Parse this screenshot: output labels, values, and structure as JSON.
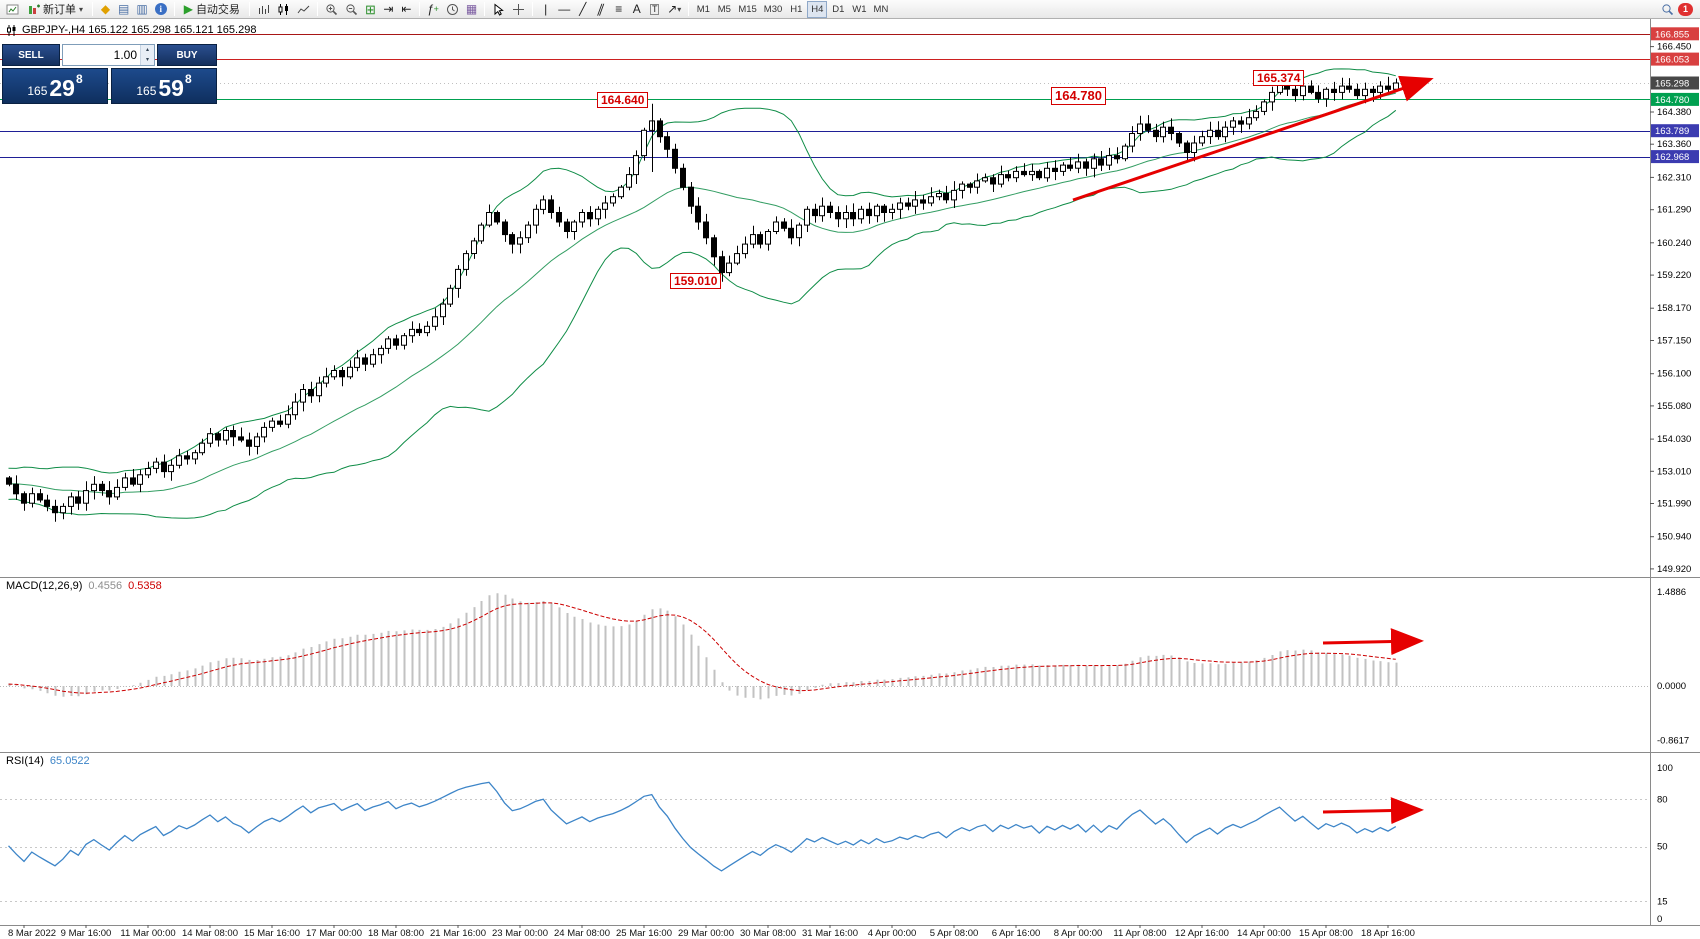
{
  "toolbar": {
    "new_order_label": "新订单",
    "auto_trading_label": "自动交易",
    "timeframes": [
      "M1",
      "M5",
      "M15",
      "M30",
      "H1",
      "H4",
      "D1",
      "W1",
      "MN"
    ],
    "active_timeframe": "H4",
    "notification_count": "1",
    "text_tool_label": "A",
    "label_tool_label": "T"
  },
  "trade_panel": {
    "sell_label": "SELL",
    "buy_label": "BUY",
    "volume": "1.00",
    "sell_price_prefix": "165",
    "sell_price_big": "29",
    "sell_price_sup": "8",
    "buy_price_prefix": "165",
    "buy_price_big": "59",
    "buy_price_sup": "8"
  },
  "chart": {
    "quote_line": "GBPJPY-,H4  165.122 165.298 165.121 165.298",
    "annotations": {
      "spike_high": "164.640",
      "swing_low": "159.010",
      "support": "164.780",
      "recent_high": "165.374"
    }
  },
  "macd_panel": {
    "title": "MACD(12,26,9)",
    "value_main": "0.4556",
    "value_signal": "0.5358",
    "axis_max": "1.4886",
    "axis_zero": "0.0000",
    "axis_min": "-0.8617"
  },
  "rsi_panel": {
    "title": "RSI(14)",
    "value": "65.0522",
    "axis_labels": [
      "100",
      "80",
      "50",
      "15",
      "0"
    ]
  },
  "chart_data": {
    "type": "candlestick",
    "symbol": "GBPJPY-",
    "timeframe": "H4",
    "last_quote": {
      "open": 165.122,
      "high": 165.298,
      "low": 165.121,
      "close": 165.298
    },
    "current_price": 165.298,
    "first_open": 152.8,
    "closes": [
      152.6,
      152.3,
      152.0,
      152.3,
      152.1,
      151.9,
      151.7,
      151.9,
      152.2,
      152.0,
      152.4,
      152.6,
      152.4,
      152.2,
      152.5,
      152.8,
      152.6,
      152.9,
      153.1,
      153.3,
      153.0,
      153.2,
      153.5,
      153.4,
      153.6,
      153.9,
      154.2,
      154.0,
      154.3,
      154.1,
      154.0,
      153.8,
      154.1,
      154.4,
      154.6,
      154.5,
      154.8,
      155.2,
      155.6,
      155.4,
      155.8,
      156.0,
      156.2,
      156.0,
      156.3,
      156.6,
      156.4,
      156.7,
      156.9,
      157.2,
      157.0,
      157.3,
      157.5,
      157.4,
      157.6,
      157.9,
      158.3,
      158.8,
      159.4,
      159.9,
      160.3,
      160.8,
      161.2,
      160.9,
      160.5,
      160.2,
      160.4,
      160.8,
      161.3,
      161.6,
      161.2,
      160.9,
      160.6,
      160.9,
      161.2,
      161.0,
      161.3,
      161.5,
      161.7,
      162.0,
      162.4,
      163.0,
      163.8,
      164.1,
      163.6,
      163.2,
      162.6,
      162.0,
      161.4,
      160.9,
      160.4,
      159.8,
      159.3,
      159.6,
      159.9,
      160.2,
      160.5,
      160.2,
      160.6,
      160.9,
      160.7,
      160.4,
      160.8,
      161.3,
      161.1,
      161.4,
      161.2,
      161.0,
      161.2,
      161.0,
      161.3,
      161.1,
      161.4,
      161.2,
      161.3,
      161.5,
      161.4,
      161.6,
      161.5,
      161.7,
      161.8,
      161.6,
      161.9,
      162.1,
      162.0,
      162.2,
      162.3,
      162.1,
      162.4,
      162.3,
      162.5,
      162.4,
      162.5,
      162.3,
      162.6,
      162.5,
      162.7,
      162.6,
      162.8,
      162.6,
      162.9,
      162.7,
      163.0,
      162.9,
      163.3,
      163.7,
      164.0,
      163.8,
      163.6,
      163.9,
      163.7,
      163.4,
      163.1,
      163.4,
      163.6,
      163.8,
      163.6,
      163.9,
      164.1,
      164.0,
      164.2,
      164.4,
      164.7,
      165.0,
      165.3,
      165.1,
      164.9,
      165.2,
      165.0,
      164.8,
      165.1,
      165.0,
      165.2,
      165.1,
      164.9,
      165.1,
      165.0,
      165.2,
      165.1,
      165.298
    ],
    "high_overrides": {
      "83": 164.64,
      "164": 165.374
    },
    "low_overrides": {
      "92": 159.01
    },
    "horizontal_levels": [
      {
        "price": 166.855,
        "color": "#a81616"
      },
      {
        "price": 166.053,
        "color": "#cc2020"
      },
      {
        "price": 164.78,
        "color": "#00a050"
      },
      {
        "price": 163.789,
        "color": "#1f1f96"
      },
      {
        "price": 162.968,
        "color": "#1f1f96"
      }
    ],
    "price_tags": [
      {
        "text": "166.855",
        "price": 166.855,
        "bg": "#d84040"
      },
      {
        "text": "166.053",
        "price": 166.053,
        "bg": "#d84040"
      },
      {
        "text": "165.298",
        "price": 165.298,
        "bg": "#484848"
      },
      {
        "text": "164.780",
        "price": 164.78,
        "bg": "#00a050"
      },
      {
        "text": "163.789",
        "price": 163.789,
        "bg": "#3b3bb0"
      },
      {
        "text": "162.968",
        "price": 162.968,
        "bg": "#3b3bb0"
      }
    ],
    "price_axis_ticks": [
      "166.450",
      "164.380",
      "163.360",
      "162.310",
      "161.290",
      "160.240",
      "159.220",
      "158.170",
      "157.150",
      "156.100",
      "155.080",
      "154.030",
      "153.010",
      "151.990",
      "150.940",
      "149.920"
    ],
    "time_labels": [
      "8 Mar 2022",
      "9 Mar 16:00",
      "11 Mar 00:00",
      "14 Mar 08:00",
      "15 Mar 16:00",
      "17 Mar 00:00",
      "18 Mar 08:00",
      "21 Mar 16:00",
      "23 Mar 00:00",
      "24 Mar 08:00",
      "25 Mar 16:00",
      "29 Mar 00:00",
      "30 Mar 08:00",
      "31 Mar 16:00",
      "4 Apr 00:00",
      "5 Apr 08:00",
      "6 Apr 16:00",
      "8 Apr 00:00",
      "11 Apr 08:00",
      "12 Apr 16:00",
      "14 Apr 00:00",
      "15 Apr 08:00",
      "18 Apr 16:00"
    ],
    "time_label_first_index": 2,
    "time_label_step": 8,
    "indicators": {
      "bollinger": {
        "period": 20,
        "deviation": 2,
        "color": "#0e8c46"
      },
      "macd": {
        "fast": 12,
        "slow": 26,
        "signal": 9,
        "histogram_color": "#c2c2c2",
        "signal_color": "#cc0000"
      },
      "rsi": {
        "period": 14,
        "color": "#3d85c8",
        "levels": [
          80,
          50,
          15
        ]
      }
    },
    "arrows": [
      {
        "panel": "main",
        "color": "#e60000"
      },
      {
        "panel": "macd",
        "color": "#e60000"
      },
      {
        "panel": "rsi",
        "color": "#e60000"
      }
    ]
  }
}
